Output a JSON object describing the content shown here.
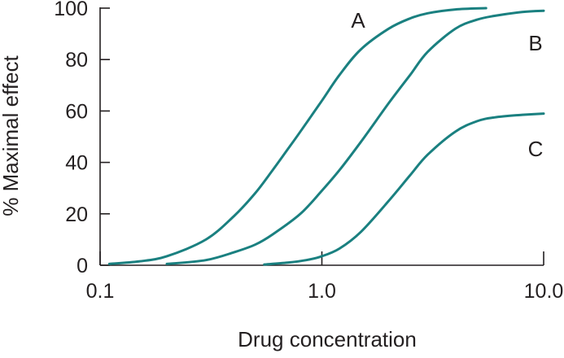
{
  "chart_data": {
    "type": "line",
    "xlabel": "Drug concentration",
    "ylabel": "% Maximal effect",
    "xscale": "log",
    "xlim": [
      0.1,
      10.0
    ],
    "ylim": [
      0,
      100
    ],
    "x_ticks": [
      {
        "value": 0.1,
        "label": "0.1"
      },
      {
        "value": 1.0,
        "label": "1.0"
      },
      {
        "value": 10.0,
        "label": "10.0"
      }
    ],
    "y_ticks": [
      {
        "value": 0,
        "label": "0"
      },
      {
        "value": 20,
        "label": "20"
      },
      {
        "value": 40,
        "label": "40"
      },
      {
        "value": 60,
        "label": "60"
      },
      {
        "value": 80,
        "label": "80"
      },
      {
        "value": 100,
        "label": "100"
      }
    ],
    "grid": false,
    "line_color": "#1a8080",
    "series": [
      {
        "name": "A",
        "x": [
          0.11,
          0.15,
          0.2,
          0.3,
          0.4,
          0.5,
          0.6,
          0.7,
          0.8,
          1.0,
          1.2,
          1.5,
          2.0,
          2.5,
          3.0,
          4.0,
          5.5
        ],
        "y": [
          0.5,
          1.5,
          3.5,
          10,
          19,
          28,
          37,
          45,
          52,
          64,
          74,
          84,
          92,
          96,
          98,
          99.5,
          100
        ]
      },
      {
        "name": "B",
        "x": [
          0.2,
          0.3,
          0.4,
          0.5,
          0.6,
          0.8,
          1.0,
          1.2,
          1.5,
          2.0,
          2.5,
          3.0,
          4.0,
          5.0,
          6.0,
          8.0,
          10.0
        ],
        "y": [
          0.5,
          2,
          5,
          8,
          12,
          20,
          29,
          37,
          48,
          63,
          74,
          83,
          92,
          95.5,
          97,
          98.5,
          99
        ]
      },
      {
        "name": "C",
        "x": [
          0.55,
          0.7,
          0.85,
          1.0,
          1.2,
          1.5,
          2.0,
          2.5,
          3.0,
          4.0,
          5.0,
          6.0,
          8.0,
          10.0
        ],
        "y": [
          0.3,
          1,
          2,
          3.5,
          6.5,
          13,
          25,
          35,
          43,
          52,
          56,
          57.5,
          58.5,
          59
        ]
      }
    ]
  }
}
